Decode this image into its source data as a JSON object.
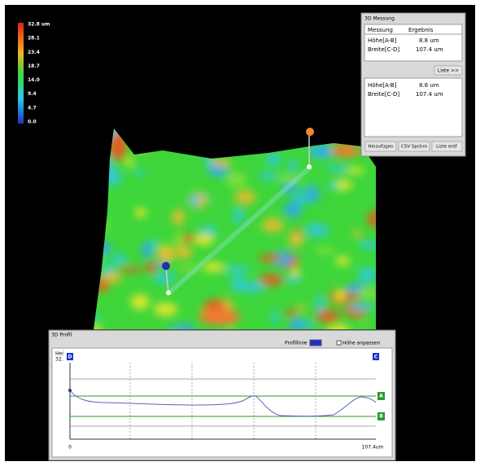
{
  "color_scale": {
    "labels": [
      "32.8 um",
      "28.1",
      "23.4",
      "18.7",
      "14.0",
      "9.4",
      "4.7",
      "0.0"
    ]
  },
  "measure_panel": {
    "title": "3D Messung",
    "columns": [
      "Messung",
      "Ergebnis"
    ],
    "rows": [
      [
        "Höhe[A-B]",
        "8.8 um"
      ],
      [
        "Breite[C-D]",
        "107.4 um"
      ]
    ],
    "list_button": "Liste >>",
    "list_rows": [
      [
        "Höhe[A-B]",
        "8.8 um"
      ],
      [
        "Breite[C-D]",
        "107.4 um"
      ]
    ],
    "buttons": [
      "Hinzufügen",
      "CSV Spchrn",
      "Liste entf"
    ]
  },
  "profile_panel": {
    "title": "3D Profil",
    "profile_line_label": "Profillinie",
    "fit_height_label": "Höhe anpassen",
    "y_label": "Hei",
    "y_max": "32.",
    "markers": [
      "D",
      "C",
      "A",
      "B"
    ],
    "x_start": "0",
    "x_end": "107.4um"
  }
}
